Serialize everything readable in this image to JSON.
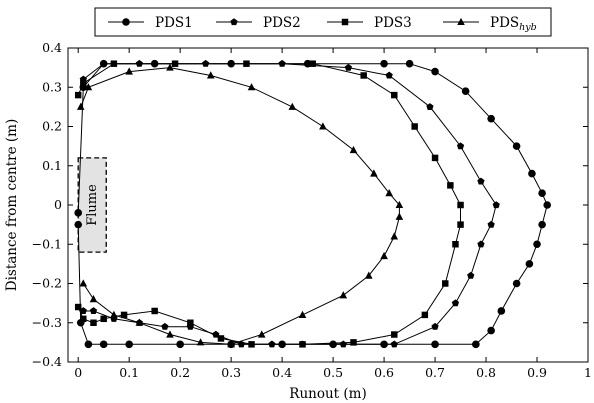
{
  "chart_data": {
    "type": "line",
    "xlabel": "Runout (m)",
    "ylabel": "Distance from centre (m)",
    "xlim": [
      -0.02,
      1.0
    ],
    "ylim": [
      -0.4,
      0.4
    ],
    "x_ticks": [
      0,
      0.1,
      0.2,
      0.3,
      0.4,
      0.5,
      0.6,
      0.7,
      0.8,
      0.9,
      1
    ],
    "x_tick_labels": [
      "0",
      "0.1",
      "0.2",
      "0.3",
      "0.4",
      "0.5",
      "0.6",
      "0.7",
      "0.8",
      "0.9",
      "1"
    ],
    "y_ticks": [
      -0.4,
      -0.3,
      -0.2,
      -0.1,
      0,
      0.1,
      0.2,
      0.3,
      0.4
    ],
    "y_tick_labels": [
      "−0.4",
      "−0.3",
      "−0.2",
      "−0.1",
      "0",
      "0.1",
      "0.2",
      "0.3",
      "0.4"
    ],
    "grid": false,
    "legend_position": "top",
    "legend": {
      "entries": [
        {
          "series": 0,
          "marker": "circle",
          "label": "PDS1"
        },
        {
          "series": 1,
          "marker": "pentagon",
          "label": "PDS2"
        },
        {
          "series": 2,
          "marker": "square",
          "label": "PDS3"
        },
        {
          "series": 3,
          "marker": "triangle",
          "label_main": "PDS",
          "label_sub": "hyb"
        }
      ]
    },
    "series": [
      {
        "marker": "circle",
        "x": [
          0.0,
          0.01,
          0.05,
          0.15,
          0.3,
          0.45,
          0.6,
          0.65,
          0.7,
          0.76,
          0.81,
          0.86,
          0.89,
          0.91,
          0.92,
          0.91,
          0.9,
          0.885,
          0.86,
          0.83,
          0.81,
          0.78,
          0.7,
          0.6,
          0.5,
          0.4,
          0.3,
          0.2,
          0.1,
          0.05,
          0.02,
          0.005,
          0.0
        ],
        "y": [
          -0.02,
          0.3,
          0.36,
          0.36,
          0.36,
          0.36,
          0.36,
          0.36,
          0.34,
          0.29,
          0.22,
          0.15,
          0.08,
          0.03,
          0.0,
          -0.05,
          -0.1,
          -0.15,
          -0.2,
          -0.27,
          -0.32,
          -0.355,
          -0.355,
          -0.355,
          -0.355,
          -0.355,
          -0.355,
          -0.355,
          -0.355,
          -0.355,
          -0.355,
          -0.3,
          -0.05
        ]
      },
      {
        "marker": "pentagon",
        "x": [
          0.01,
          0.05,
          0.12,
          0.25,
          0.4,
          0.53,
          0.61,
          0.69,
          0.75,
          0.79,
          0.82,
          0.81,
          0.79,
          0.77,
          0.74,
          0.7,
          0.62,
          0.52,
          0.44,
          0.38,
          0.32,
          0.27,
          0.22,
          0.17,
          0.12,
          0.07,
          0.03,
          0.01
        ],
        "y": [
          0.32,
          0.36,
          0.36,
          0.36,
          0.36,
          0.35,
          0.33,
          0.25,
          0.15,
          0.06,
          0.0,
          -0.05,
          -0.1,
          -0.18,
          -0.25,
          -0.31,
          -0.355,
          -0.355,
          -0.355,
          -0.355,
          -0.355,
          -0.33,
          -0.31,
          -0.31,
          -0.3,
          -0.29,
          -0.27,
          -0.27
        ]
      },
      {
        "marker": "square",
        "x": [
          0.0,
          0.01,
          0.07,
          0.19,
          0.33,
          0.46,
          0.56,
          0.62,
          0.66,
          0.7,
          0.73,
          0.75,
          0.75,
          0.74,
          0.72,
          0.68,
          0.62,
          0.54,
          0.44,
          0.34,
          0.28,
          0.22,
          0.15,
          0.09,
          0.05,
          0.03,
          0.01,
          0.0
        ],
        "y": [
          0.28,
          0.31,
          0.36,
          0.36,
          0.36,
          0.36,
          0.33,
          0.28,
          0.2,
          0.12,
          0.05,
          0.0,
          -0.05,
          -0.1,
          -0.2,
          -0.28,
          -0.33,
          -0.35,
          -0.355,
          -0.355,
          -0.34,
          -0.3,
          -0.27,
          -0.28,
          -0.29,
          -0.3,
          -0.29,
          -0.26
        ]
      },
      {
        "marker": "triangle",
        "x": [
          0.005,
          0.02,
          0.1,
          0.18,
          0.26,
          0.34,
          0.42,
          0.48,
          0.54,
          0.58,
          0.61,
          0.63,
          0.63,
          0.62,
          0.6,
          0.57,
          0.52,
          0.44,
          0.36,
          0.3,
          0.24,
          0.18,
          0.12,
          0.07,
          0.03,
          0.01
        ],
        "y": [
          0.25,
          0.3,
          0.34,
          0.35,
          0.33,
          0.3,
          0.25,
          0.2,
          0.14,
          0.08,
          0.03,
          0.0,
          -0.03,
          -0.08,
          -0.13,
          -0.18,
          -0.23,
          -0.28,
          -0.33,
          -0.355,
          -0.35,
          -0.33,
          -0.3,
          -0.28,
          -0.24,
          -0.2
        ]
      }
    ],
    "annotation": {
      "text": "Flume",
      "x_range": [
        0.0,
        0.055
      ],
      "y_range": [
        -0.12,
        0.12
      ]
    }
  }
}
